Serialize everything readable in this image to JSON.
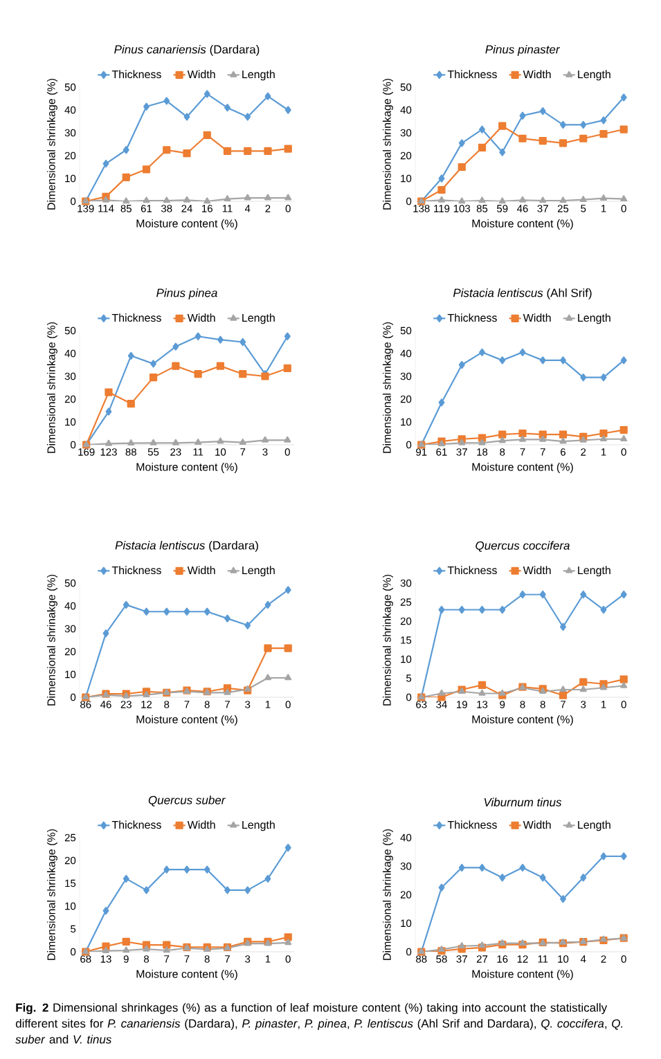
{
  "chart_data": [
    {
      "type": "line",
      "title": "*Pinus canariensis* (Dardara)",
      "xlabel": "Moisture content (%)",
      "ylabel": "Dimensional shrinkage (%)",
      "categories": [
        "139",
        "114",
        "85",
        "61",
        "38",
        "24",
        "16",
        "11",
        "4",
        "2",
        "0"
      ],
      "ylim": [
        0,
        50
      ],
      "yticks": [
        0,
        10,
        20,
        30,
        40,
        50
      ],
      "grid": false,
      "legend": "top",
      "line_style": "solid",
      "series": [
        {
          "name": "Thickness",
          "color": "#5b9bd5",
          "marker": "diamond",
          "values": [
            0,
            16.5,
            22.5,
            41.5,
            44,
            37,
            47,
            41,
            37,
            46,
            40
          ]
        },
        {
          "name": "Width",
          "color": "#ed7d31",
          "marker": "square",
          "values": [
            0,
            2,
            10.5,
            14,
            22.5,
            21,
            29,
            22,
            22,
            22,
            23
          ]
        },
        {
          "name": "Length",
          "color": "#a5a5a5",
          "marker": "triangle",
          "values": [
            0,
            0.5,
            0,
            0.3,
            0.3,
            0.5,
            0,
            1,
            1.5,
            1.5,
            1.5
          ]
        }
      ]
    },
    {
      "type": "line",
      "title": "*Pinus pinaster*",
      "xlabel": "Moisture content (%)",
      "ylabel": "Dimensional shrinkage (%)",
      "categories": [
        "138",
        "119",
        "103",
        "85",
        "59",
        "46",
        "37",
        "25",
        "5",
        "1",
        "0"
      ],
      "ylim": [
        0,
        50
      ],
      "yticks": [
        0,
        10,
        20,
        30,
        40,
        50
      ],
      "grid": false,
      "legend": "top",
      "line_style": "solid",
      "series": [
        {
          "name": "Thickness",
          "color": "#5b9bd5",
          "marker": "diamond",
          "values": [
            0,
            10,
            25.5,
            31.5,
            21.5,
            37.5,
            39.5,
            33.5,
            33.5,
            35.5,
            45.5
          ]
        },
        {
          "name": "Width",
          "color": "#ed7d31",
          "marker": "square",
          "values": [
            0,
            5,
            15,
            23.5,
            33,
            27.5,
            26.5,
            25.5,
            27.5,
            29.5,
            31.5
          ]
        },
        {
          "name": "Length",
          "color": "#a5a5a5",
          "marker": "triangle",
          "values": [
            0,
            0.5,
            0,
            0.3,
            0,
            0.5,
            0.3,
            0.3,
            0.7,
            1.3,
            1
          ]
        }
      ]
    },
    {
      "type": "line",
      "title": "*Pinus pinea*",
      "xlabel": "Moisture content (%)",
      "ylabel": "Dimensional shrinkage (%)",
      "categories": [
        "169",
        "123",
        "88",
        "55",
        "23",
        "11",
        "10",
        "7",
        "3",
        "0"
      ],
      "ylim": [
        0,
        50
      ],
      "yticks": [
        0,
        10,
        20,
        30,
        40,
        50
      ],
      "grid": false,
      "legend": "top",
      "line_style": "solid",
      "series": [
        {
          "name": "Thickness",
          "color": "#5b9bd5",
          "marker": "diamond",
          "values": [
            0,
            14.5,
            39,
            35.5,
            43,
            47.5,
            46,
            45,
            31,
            47.5
          ]
        },
        {
          "name": "Width",
          "color": "#ed7d31",
          "marker": "square",
          "values": [
            0,
            23,
            18,
            29.5,
            34.5,
            31,
            34.5,
            31,
            30,
            33.5
          ]
        },
        {
          "name": "Length",
          "color": "#a5a5a5",
          "marker": "triangle",
          "values": [
            0,
            0.5,
            0.7,
            0.8,
            0.8,
            1,
            1.5,
            1,
            2,
            2
          ]
        }
      ]
    },
    {
      "type": "line",
      "title": "*Pistacia lentiscus* (Ahl Srif)",
      "xlabel": "Moisture content (%)",
      "ylabel": "Dimensional shrinkage (%)",
      "categories": [
        "91",
        "61",
        "37",
        "18",
        "8",
        "7",
        "7",
        "6",
        "2",
        "1",
        "0"
      ],
      "ylim": [
        0,
        50
      ],
      "yticks": [
        0,
        10,
        20,
        30,
        40,
        50
      ],
      "grid": false,
      "legend": "top",
      "line_style": "solid",
      "series": [
        {
          "name": "Thickness",
          "color": "#5b9bd5",
          "marker": "diamond",
          "values": [
            0,
            18.5,
            35,
            40.5,
            37,
            40.5,
            37,
            37,
            29.5,
            29.5,
            37
          ]
        },
        {
          "name": "Width",
          "color": "#ed7d31",
          "marker": "square",
          "values": [
            0,
            1.5,
            2.5,
            3,
            4.5,
            5,
            4.5,
            4.5,
            3.5,
            5,
            6.5
          ]
        },
        {
          "name": "Length",
          "color": "#a5a5a5",
          "marker": "triangle",
          "values": [
            0,
            0.3,
            0.8,
            0.8,
            1.8,
            2.3,
            2.3,
            1.5,
            2,
            2.5,
            2.5
          ]
        }
      ]
    },
    {
      "type": "line",
      "title": "*Pistacia lentiscus* (Dardara)",
      "xlabel": "Moisture content (%)",
      "ylabel": "Dimensional shrinakge (%)",
      "categories": [
        "86",
        "46",
        "23",
        "12",
        "8",
        "7",
        "8",
        "7",
        "3",
        "1",
        "0"
      ],
      "ylim": [
        0,
        50
      ],
      "yticks": [
        0,
        10,
        20,
        30,
        40,
        50
      ],
      "grid": false,
      "legend": "top",
      "line_style": "solid",
      "series": [
        {
          "name": "Thickness",
          "color": "#5b9bd5",
          "marker": "diamond",
          "values": [
            0,
            28,
            40.5,
            37.5,
            37.5,
            37.5,
            37.5,
            34.5,
            31.5,
            40.5,
            47
          ]
        },
        {
          "name": "Width",
          "color": "#ed7d31",
          "marker": "square",
          "values": [
            0,
            1.5,
            1.5,
            2.5,
            2,
            3,
            2.5,
            4,
            3,
            21.5,
            21.5
          ]
        },
        {
          "name": "Length",
          "color": "#a5a5a5",
          "marker": "triangle",
          "values": [
            0,
            1,
            0.5,
            1,
            2,
            2.5,
            2,
            2,
            3.5,
            8.5,
            8.5
          ]
        }
      ]
    },
    {
      "type": "line",
      "title": "*Quercus coccifera*",
      "xlabel": "Moisture content (%)",
      "ylabel": "Dimensional shrinkage (%)",
      "categories": [
        "63",
        "34",
        "19",
        "13",
        "9",
        "8",
        "8",
        "7",
        "3",
        "1",
        "0"
      ],
      "ylim": [
        0,
        30
      ],
      "yticks": [
        0,
        5,
        10,
        15,
        20,
        25,
        30
      ],
      "grid": false,
      "legend": "top",
      "line_style": "solid",
      "series": [
        {
          "name": "Thickness",
          "color": "#5b9bd5",
          "marker": "diamond",
          "values": [
            0,
            23,
            23,
            23,
            23,
            27,
            27,
            18.5,
            27,
            23,
            27
          ]
        },
        {
          "name": "Width",
          "color": "#ed7d31",
          "marker": "square",
          "values": [
            0,
            0,
            2,
            3.2,
            0.5,
            2.7,
            2.2,
            0.5,
            4,
            3.5,
            4.7
          ]
        },
        {
          "name": "Length",
          "color": "#a5a5a5",
          "marker": "triangle",
          "values": [
            0,
            1,
            1.5,
            1,
            1,
            2.5,
            1.5,
            2,
            2,
            2.5,
            3
          ]
        }
      ]
    },
    {
      "type": "line",
      "title": "*Quercus suber*",
      "xlabel": "Moisture content (%)",
      "ylabel": "Dimensional shrinkage (%)",
      "categories": [
        "68",
        "13",
        "9",
        "8",
        "7",
        "7",
        "8",
        "7",
        "3",
        "1",
        "0"
      ],
      "ylim": [
        0,
        25
      ],
      "yticks": [
        0,
        5,
        10,
        15,
        20,
        25
      ],
      "grid": false,
      "legend": "top",
      "line_style": "solid",
      "series": [
        {
          "name": "Thickness",
          "color": "#5b9bd5",
          "marker": "diamond",
          "values": [
            0,
            9,
            16,
            13.5,
            18,
            18,
            18,
            13.5,
            13.5,
            16,
            22.8
          ]
        },
        {
          "name": "Width",
          "color": "#ed7d31",
          "marker": "square",
          "values": [
            0,
            1.2,
            2.2,
            1.5,
            1.5,
            1,
            1,
            1,
            2.2,
            2.2,
            3.2
          ]
        },
        {
          "name": "Length",
          "color": "#a5a5a5",
          "marker": "triangle",
          "values": [
            0,
            0.2,
            0.3,
            0.6,
            0.3,
            0.8,
            0.5,
            0.8,
            1.8,
            1.8,
            2
          ]
        }
      ]
    },
    {
      "type": "line",
      "title": "*Viburnum tinus*",
      "xlabel": "Moisture content (%)",
      "ylabel": "Dimensional shrinkage (%)",
      "categories": [
        "88",
        "58",
        "37",
        "27",
        "16",
        "12",
        "11",
        "10",
        "4",
        "2",
        "0"
      ],
      "ylim": [
        0,
        40
      ],
      "yticks": [
        0,
        10,
        20,
        30,
        40
      ],
      "grid": false,
      "legend": "top",
      "line_style": "solid",
      "series": [
        {
          "name": "Thickness",
          "color": "#5b9bd5",
          "marker": "diamond",
          "values": [
            0,
            22.5,
            29.5,
            29.5,
            26,
            29.5,
            26,
            18.5,
            26,
            33.5,
            33.5
          ]
        },
        {
          "name": "Width",
          "color": "#ed7d31",
          "marker": "square",
          "values": [
            0,
            0.3,
            1,
            1.5,
            2.5,
            2.5,
            3.3,
            3,
            3.5,
            4,
            4.8
          ]
        },
        {
          "name": "Length",
          "color": "#a5a5a5",
          "marker": "triangle",
          "values": [
            0,
            0.8,
            2,
            2.2,
            3,
            3,
            3,
            3.3,
            3.5,
            4.3,
            4.7
          ]
        }
      ],
      "annotations": [
        "**Fig. 2** Dimensional shrinkages (%) as a function of leaf moisture content (%) taking into account the statistically different sites for *P. canariensis* (Dardara), *P. pinaster*, *P. pinea*, *P. lentiscus* (Ahl Srif and Dardara), *Q. coccifera*, *Q. suber* and *V. tinus*"
      ]
    }
  ]
}
